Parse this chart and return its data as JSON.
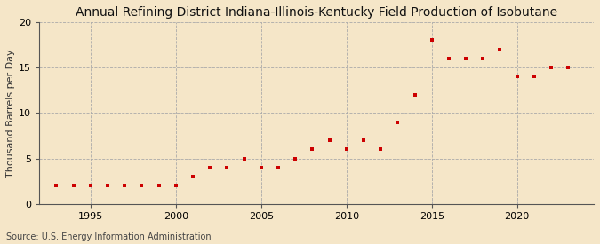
{
  "title": "Annual Refining District Indiana-Illinois-Kentucky Field Production of Isobutane",
  "ylabel": "Thousand Barrels per Day",
  "source": "Source: U.S. Energy Information Administration",
  "background_color": "#f5e6c8",
  "plot_background_color": "#f5e6c8",
  "marker_color": "#cc0000",
  "marker": "s",
  "marker_size": 3.5,
  "xlim": [
    1992,
    2024.5
  ],
  "ylim": [
    0,
    20
  ],
  "yticks": [
    0,
    5,
    10,
    15,
    20
  ],
  "xticks": [
    1995,
    2000,
    2005,
    2010,
    2015,
    2020
  ],
  "years": [
    1993,
    1994,
    1995,
    1996,
    1997,
    1998,
    1999,
    2000,
    2001,
    2002,
    2003,
    2004,
    2005,
    2006,
    2007,
    2008,
    2009,
    2010,
    2011,
    2012,
    2013,
    2014,
    2015,
    2016,
    2017,
    2018,
    2019,
    2020,
    2021,
    2022,
    2023
  ],
  "values": [
    2.0,
    2.0,
    2.0,
    2.0,
    2.0,
    2.0,
    2.0,
    2.0,
    3.0,
    4.0,
    4.0,
    5.0,
    4.0,
    4.0,
    5.0,
    6.0,
    7.0,
    6.0,
    7.0,
    6.0,
    9.0,
    12.0,
    18.0,
    16.0,
    16.0,
    16.0,
    17.0,
    14.0,
    14.0,
    15.0,
    15.0
  ],
  "title_fontsize": 10,
  "label_fontsize": 8,
  "tick_fontsize": 8,
  "source_fontsize": 7
}
